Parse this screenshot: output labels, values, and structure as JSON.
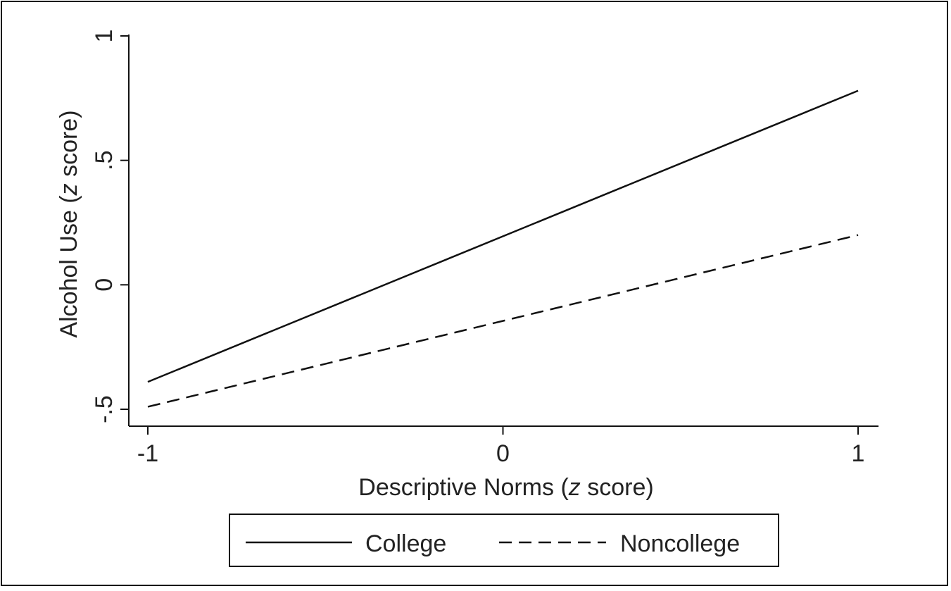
{
  "chart_data": {
    "type": "line",
    "xlabel_main": "Descriptive Norms (",
    "xlabel_italic": "z",
    "xlabel_end": " score)",
    "ylabel_main": "Alcohol Use (",
    "ylabel_italic": "z",
    "ylabel_end": " score)",
    "xlim": [
      -1,
      1
    ],
    "ylim": [
      -0.5,
      1
    ],
    "x_ticks": [
      {
        "value": -1,
        "label": "-1"
      },
      {
        "value": 0,
        "label": "0"
      },
      {
        "value": 1,
        "label": "1"
      }
    ],
    "y_ticks": [
      {
        "value": -0.5,
        "label": "-.5"
      },
      {
        "value": 0,
        "label": "0"
      },
      {
        "value": 0.5,
        "label": ".5"
      },
      {
        "value": 1,
        "label": "1"
      }
    ],
    "grid": false,
    "legend_position": "bottom",
    "series": [
      {
        "name": "College",
        "style": "solid",
        "x": [
          -1,
          1
        ],
        "y": [
          -0.39,
          0.78
        ]
      },
      {
        "name": "Noncollege",
        "style": "dashed",
        "x": [
          -1,
          1
        ],
        "y": [
          -0.49,
          0.2
        ]
      }
    ]
  },
  "colors": {
    "line": "#111111",
    "axis": "#111111",
    "background": "#ffffff"
  }
}
